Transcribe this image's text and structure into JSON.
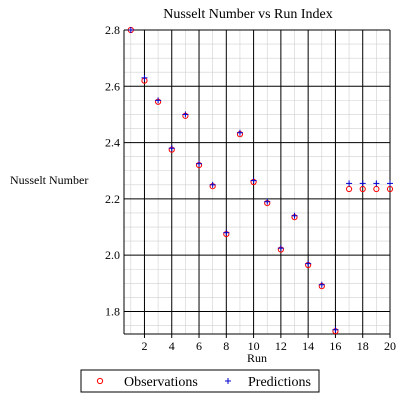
{
  "chart_data": {
    "type": "scatter",
    "title": "Nusselt Number vs Run Index",
    "xlabel": "Run",
    "ylabel": "Nusselt Number",
    "xlim": [
      0.5,
      20
    ],
    "ylim": [
      1.72,
      2.8
    ],
    "xticks": [
      "2",
      "4",
      "6",
      "8",
      "10",
      "12",
      "14",
      "16",
      "18",
      "20"
    ],
    "yticks": [
      "1.8",
      "2.0",
      "2.2",
      "2.4",
      "2.6",
      "2.8"
    ],
    "grid": true,
    "legend_position": "bottom",
    "series": [
      {
        "name": "Observations",
        "marker": "circle",
        "color": "#ff0000",
        "x": [
          1,
          2,
          3,
          4,
          5,
          6,
          7,
          8,
          9,
          10,
          11,
          12,
          13,
          14,
          15,
          16,
          17,
          18,
          19,
          20
        ],
        "y": [
          2.8,
          2.62,
          2.545,
          2.375,
          2.495,
          2.32,
          2.245,
          2.075,
          2.43,
          2.26,
          2.185,
          2.02,
          2.135,
          1.965,
          1.89,
          1.73,
          2.235,
          2.235,
          2.235,
          2.235
        ]
      },
      {
        "name": "Predictions",
        "marker": "plus",
        "color": "#0000cc",
        "x": [
          1,
          2,
          3,
          4,
          5,
          6,
          7,
          8,
          9,
          10,
          11,
          12,
          13,
          14,
          15,
          16,
          17,
          18,
          19,
          20
        ],
        "y": [
          2.8,
          2.63,
          2.55,
          2.38,
          2.5,
          2.325,
          2.25,
          2.08,
          2.435,
          2.265,
          2.19,
          2.025,
          2.14,
          1.97,
          1.895,
          1.735,
          2.255,
          2.255,
          2.255,
          2.255
        ]
      }
    ]
  }
}
